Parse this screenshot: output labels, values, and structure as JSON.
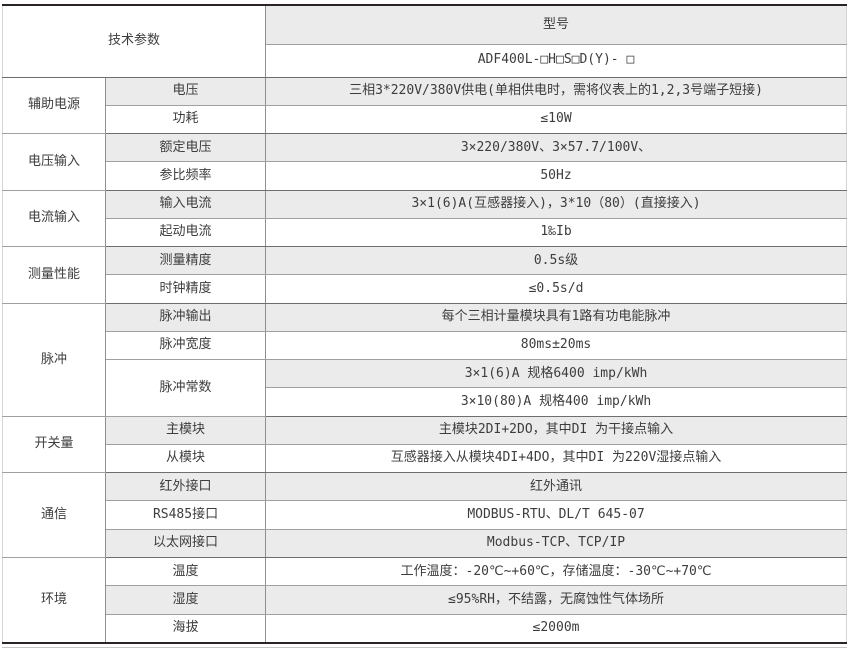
{
  "header": {
    "left_title": "技术参数",
    "model_label": "型号",
    "model_value": "ADF400L-□H□S□D(Y)- □"
  },
  "colors": {
    "row_shade": "#ebebeb",
    "rule_dark": "#2b2425",
    "rule_group": "#6e6e6e",
    "rule_inner": "#a0a0a0",
    "text": "#3d3d3d"
  },
  "table": {
    "groups": [
      {
        "name": "辅助电源",
        "rows": [
          {
            "param": "电压",
            "values": [
              "三相3*220V/380V供电(单相供电时，需将仪表上的1,2,3号端子短接)"
            ]
          },
          {
            "param": "功耗",
            "values": [
              "≤10W"
            ]
          }
        ]
      },
      {
        "name": "电压输入",
        "rows": [
          {
            "param": "额定电压",
            "values": [
              "3×220/380V、3×57.7/100V、"
            ]
          },
          {
            "param": "参比频率",
            "values": [
              "50Hz"
            ]
          }
        ]
      },
      {
        "name": "电流输入",
        "rows": [
          {
            "param": "输入电流",
            "values": [
              "3×1(6)A(互感器接入)，3*10（80）(直接接入)"
            ]
          },
          {
            "param": "起动电流",
            "values": [
              "1‰Ib"
            ]
          }
        ]
      },
      {
        "name": "测量性能",
        "rows": [
          {
            "param": "测量精度",
            "values": [
              "0.5s级"
            ]
          },
          {
            "param": "时钟精度",
            "values": [
              "≤0.5s/d"
            ]
          }
        ]
      },
      {
        "name": "脉冲",
        "rows": [
          {
            "param": "脉冲输出",
            "values": [
              "每个三相计量模块具有1路有功电能脉冲"
            ]
          },
          {
            "param": "脉冲宽度",
            "values": [
              "80ms±20ms"
            ]
          },
          {
            "param": "脉冲常数",
            "values": [
              "3×1(6)A 规格6400 imp/kWh",
              "3×10(80)A 规格400 imp/kWh"
            ]
          }
        ]
      },
      {
        "name": "开关量",
        "rows": [
          {
            "param": "主模块",
            "values": [
              "主模块2DI+2DO，其中DI 为干接点输入"
            ]
          },
          {
            "param": "从模块",
            "values": [
              "互感器接入从模块4DI+4DO，其中DI 为220V湿接点输入"
            ]
          }
        ]
      },
      {
        "name": "通信",
        "rows": [
          {
            "param": "红外接口",
            "values": [
              "红外通讯"
            ]
          },
          {
            "param": "RS485接口",
            "values": [
              "MODBUS-RTU、DL/T 645-07"
            ]
          },
          {
            "param": "以太网接口",
            "values": [
              "Modbus-TCP、TCP/IP"
            ]
          }
        ]
      },
      {
        "name": "环境",
        "rows": [
          {
            "param": "温度",
            "values": [
              "工作温度：-20℃~+60℃，存储温度：-30℃~+70℃"
            ]
          },
          {
            "param": "湿度",
            "values": [
              "≤95%RH，不结露，无腐蚀性气体场所"
            ]
          },
          {
            "param": "海拔",
            "values": [
              "≤2000m"
            ]
          }
        ]
      }
    ]
  }
}
